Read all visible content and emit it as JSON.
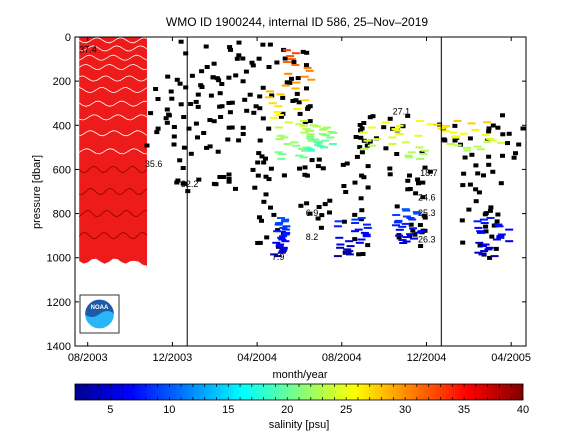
{
  "chart_data": {
    "type": "heatmap",
    "title": "WMO ID 1900244, internal ID 586, 25–Nov–2019",
    "xlabel": "month/year",
    "ylabel": "pressure [dbar]",
    "x_tick_labels": [
      "08/2003",
      "12/2003",
      "04/2004",
      "08/2004",
      "12/2004",
      "04/2005"
    ],
    "x_ticks_months": [
      0,
      4,
      8,
      12,
      16,
      20
    ],
    "xlim_months": [
      -0.6,
      20.7
    ],
    "y_tick_labels": [
      "0",
      "200",
      "400",
      "600",
      "800",
      "1000",
      "1200",
      "1400"
    ],
    "y_ticks": [
      0,
      200,
      400,
      600,
      800,
      1000,
      1200,
      1400
    ],
    "ylim": [
      0,
      1400
    ],
    "y_reversed": true,
    "colorbar": {
      "label": "salinity [psu]",
      "tick_labels": [
        "5",
        "10",
        "15",
        "20",
        "25",
        "30",
        "35",
        "40"
      ],
      "ticks": [
        5,
        10,
        15,
        20,
        25,
        30,
        35,
        40
      ],
      "range": [
        2,
        40
      ],
      "colormap": "jet"
    },
    "vertical_lines_months": [
      4.7,
      16.7
    ],
    "contour_labels": [
      {
        "text": "37.4",
        "month": -0.4,
        "pressure": 70
      },
      {
        "text": "35.6",
        "month": 2.7,
        "pressure": 590
      },
      {
        "text": "32.2",
        "month": 4.4,
        "pressure": 680
      },
      {
        "text": "27.1",
        "month": 14.4,
        "pressure": 350
      },
      {
        "text": "24.6",
        "month": 15.6,
        "pressure": 740
      },
      {
        "text": "25.3",
        "month": 15.6,
        "pressure": 810
      },
      {
        "text": "26.3",
        "month": 15.6,
        "pressure": 930
      },
      {
        "text": "18.7",
        "month": 15.7,
        "pressure": 630
      },
      {
        "text": "8.2",
        "month": 10.3,
        "pressure": 920
      },
      {
        "text": "7.9",
        "month": 8.7,
        "pressure": 1010
      },
      {
        "text": "6.9",
        "month": 10.3,
        "pressure": 810
      }
    ],
    "logo_text": "NOAA",
    "colors": {
      "red_region": "#ee1b1b",
      "dark_red": "#a00000",
      "scatter_black": "#000000"
    }
  }
}
